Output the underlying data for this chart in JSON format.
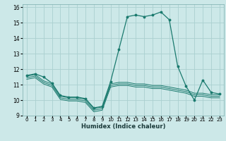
{
  "title": "",
  "xlabel": "Humidex (Indice chaleur)",
  "background_color": "#cce8e8",
  "grid_color": "#aad0d0",
  "line_color": "#1a7a6e",
  "xlim": [
    -0.5,
    23.5
  ],
  "ylim": [
    9,
    16.2
  ],
  "xticks": [
    0,
    1,
    2,
    3,
    4,
    5,
    6,
    7,
    8,
    9,
    10,
    11,
    12,
    13,
    14,
    15,
    16,
    17,
    18,
    19,
    20,
    21,
    22,
    23
  ],
  "yticks": [
    9,
    10,
    11,
    12,
    13,
    14,
    15,
    16
  ],
  "series": [
    {
      "x": [
        0,
        1,
        2,
        3,
        4,
        5,
        6,
        7,
        8,
        9,
        10,
        11,
        12,
        13,
        14,
        15,
        16,
        17,
        18,
        19,
        20,
        21,
        22,
        23
      ],
      "y": [
        11.6,
        11.7,
        11.5,
        11.1,
        10.3,
        10.2,
        10.2,
        10.1,
        9.5,
        9.6,
        11.2,
        13.3,
        15.4,
        15.5,
        15.4,
        15.5,
        15.7,
        15.2,
        12.2,
        10.9,
        10.0,
        11.3,
        10.5,
        10.4
      ],
      "marker": true
    },
    {
      "x": [
        0,
        1,
        2,
        3,
        4,
        5,
        6,
        7,
        8,
        9,
        10,
        11,
        12,
        13,
        14,
        15,
        16,
        17,
        18,
        19,
        20,
        21,
        22,
        23
      ],
      "y": [
        11.55,
        11.65,
        11.25,
        11.05,
        10.25,
        10.15,
        10.15,
        10.05,
        9.45,
        9.55,
        11.05,
        11.15,
        11.15,
        11.05,
        11.05,
        10.95,
        10.95,
        10.85,
        10.75,
        10.65,
        10.45,
        10.45,
        10.35,
        10.35
      ],
      "marker": false
    },
    {
      "x": [
        0,
        1,
        2,
        3,
        4,
        5,
        6,
        7,
        8,
        9,
        10,
        11,
        12,
        13,
        14,
        15,
        16,
        17,
        18,
        19,
        20,
        21,
        22,
        23
      ],
      "y": [
        11.45,
        11.55,
        11.15,
        10.95,
        10.15,
        10.05,
        10.05,
        9.95,
        9.35,
        9.45,
        10.95,
        11.05,
        11.05,
        10.95,
        10.95,
        10.85,
        10.85,
        10.75,
        10.65,
        10.55,
        10.35,
        10.35,
        10.25,
        10.25
      ],
      "marker": false
    },
    {
      "x": [
        0,
        1,
        2,
        3,
        4,
        5,
        6,
        7,
        8,
        9,
        10,
        11,
        12,
        13,
        14,
        15,
        16,
        17,
        18,
        19,
        20,
        21,
        22,
        23
      ],
      "y": [
        11.35,
        11.45,
        11.05,
        10.85,
        10.05,
        9.95,
        9.95,
        9.85,
        9.25,
        9.35,
        10.85,
        10.95,
        10.95,
        10.85,
        10.85,
        10.75,
        10.75,
        10.65,
        10.55,
        10.45,
        10.25,
        10.25,
        10.15,
        10.15
      ],
      "marker": false
    }
  ]
}
